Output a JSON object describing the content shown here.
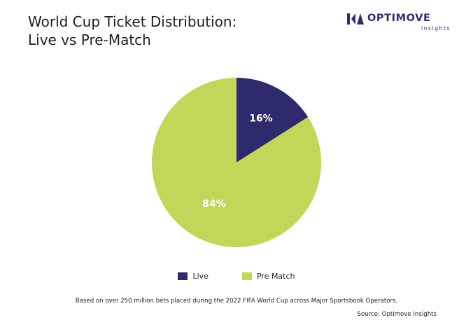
{
  "title_lines": [
    "World Cup Ticket Distribution:",
    "Live vs Pre-Match"
  ],
  "logo": {
    "brand": "OPTIMOVE",
    "sub": "insights"
  },
  "colors": {
    "live": "#2d2b6b",
    "pre_match": "#c4d65a",
    "brand": "#2d2e6e"
  },
  "chart_data": {
    "type": "pie",
    "title": "World Cup Ticket Distribution: Live vs Pre-Match",
    "slices": [
      {
        "name": "Live",
        "value": 16,
        "label": "16%"
      },
      {
        "name": "Pre Match",
        "value": 84,
        "label": "84%"
      }
    ],
    "legend": "bottom"
  },
  "legend": [
    {
      "label": "Live",
      "color": "#2d2b6b"
    },
    {
      "label": "Pre Match",
      "color": "#c4d65a"
    }
  ],
  "footnote": "Based on over 250 million bets placed during the 2022 FIFA World Cup across Major Sportsbook Operators.",
  "source": "Source: Optimove Insights"
}
